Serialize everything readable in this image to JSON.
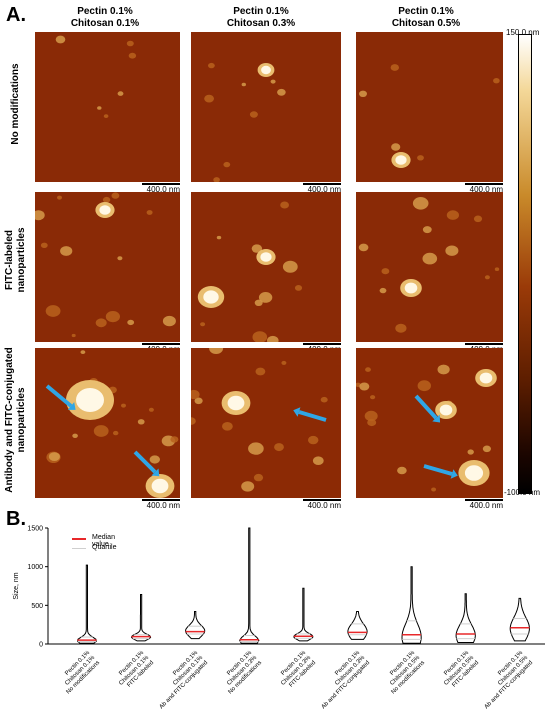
{
  "panel_a": {
    "letter": "A.",
    "column_headers": [
      {
        "line1": "Pectin 0.1%",
        "line2": "Chitosan 0.1%"
      },
      {
        "line1": "Pectin 0.1%",
        "line2": "Chitosan 0.3%"
      },
      {
        "line1": "Pectin 0.1%",
        "line2": "Chitosan 0.5%"
      }
    ],
    "row_headers": [
      {
        "line1": "No modifications",
        "line2": ""
      },
      {
        "line1": "FITC-labeled",
        "line2": "nanoparticles"
      },
      {
        "line1": "Antibody and FITC-conjugated",
        "line2": "nanoparticles"
      }
    ],
    "scale_bar_label": "400.0 nm",
    "colorbar": {
      "top_label": "150.0 nm",
      "bottom_label": "-100.0 nm"
    }
  },
  "panel_b": {
    "letter": "B.",
    "legend": [
      {
        "label": "Median value",
        "color": "#e8282a"
      },
      {
        "label": "Quartile",
        "color": "#cfcfcf"
      }
    ]
  },
  "chart_data": {
    "type": "violin",
    "ylabel": "Size, nm",
    "ylim": [
      0,
      1500
    ],
    "yticks": [
      0,
      500,
      1000,
      1500
    ],
    "categories": [
      [
        "Pectin 0.1%",
        "Chitosan 0.1%",
        "No modifications"
      ],
      [
        "Pectin 0.1%",
        "Chitosan 0.1%",
        "FITC-labeled"
      ],
      [
        "Pectin 0.1%",
        "Chitosan 0.1%",
        "Ab and FITC-conjugated"
      ],
      [
        "Pectin 0.1%",
        "Chitosan 0.3%",
        "No modifications"
      ],
      [
        "Pectin 0.1%",
        "Chitosan 0.3%",
        "FITC-labeled"
      ],
      [
        "Pectin 0.1%",
        "Chitosan 0.3%",
        "Ab and FITC-conjugated"
      ],
      [
        "Pectin 0.1%",
        "Chitosan 0.5%",
        "No modifications"
      ],
      [
        "Pectin 0.1%",
        "Chitosan 0.5%",
        "FITC-labeled"
      ],
      [
        "Pectin 0.1%",
        "Chitosan 0.5%",
        "Ab and FITC-conjugated"
      ]
    ],
    "series": [
      {
        "min": 10,
        "q1": 30,
        "median": 50,
        "q3": 90,
        "max": 1020,
        "peak": 45
      },
      {
        "min": 40,
        "q1": 70,
        "median": 95,
        "q3": 120,
        "max": 640,
        "peak": 90
      },
      {
        "min": 70,
        "q1": 130,
        "median": 160,
        "q3": 230,
        "max": 420,
        "peak": 170
      },
      {
        "min": 10,
        "q1": 30,
        "median": 55,
        "q3": 110,
        "max": 1500,
        "peak": 45
      },
      {
        "min": 40,
        "q1": 75,
        "median": 100,
        "q3": 130,
        "max": 720,
        "peak": 95
      },
      {
        "min": 60,
        "q1": 120,
        "median": 150,
        "q3": 260,
        "max": 420,
        "peak": 160
      },
      {
        "min": 10,
        "q1": 60,
        "median": 120,
        "q3": 300,
        "max": 1000,
        "peak": 90
      },
      {
        "min": 20,
        "q1": 70,
        "median": 130,
        "q3": 260,
        "max": 650,
        "peak": 110
      },
      {
        "min": 40,
        "q1": 130,
        "median": 210,
        "q3": 330,
        "max": 590,
        "peak": 200
      }
    ],
    "median_color": "#e8282a",
    "quartile_color": "#cfcfcf"
  }
}
